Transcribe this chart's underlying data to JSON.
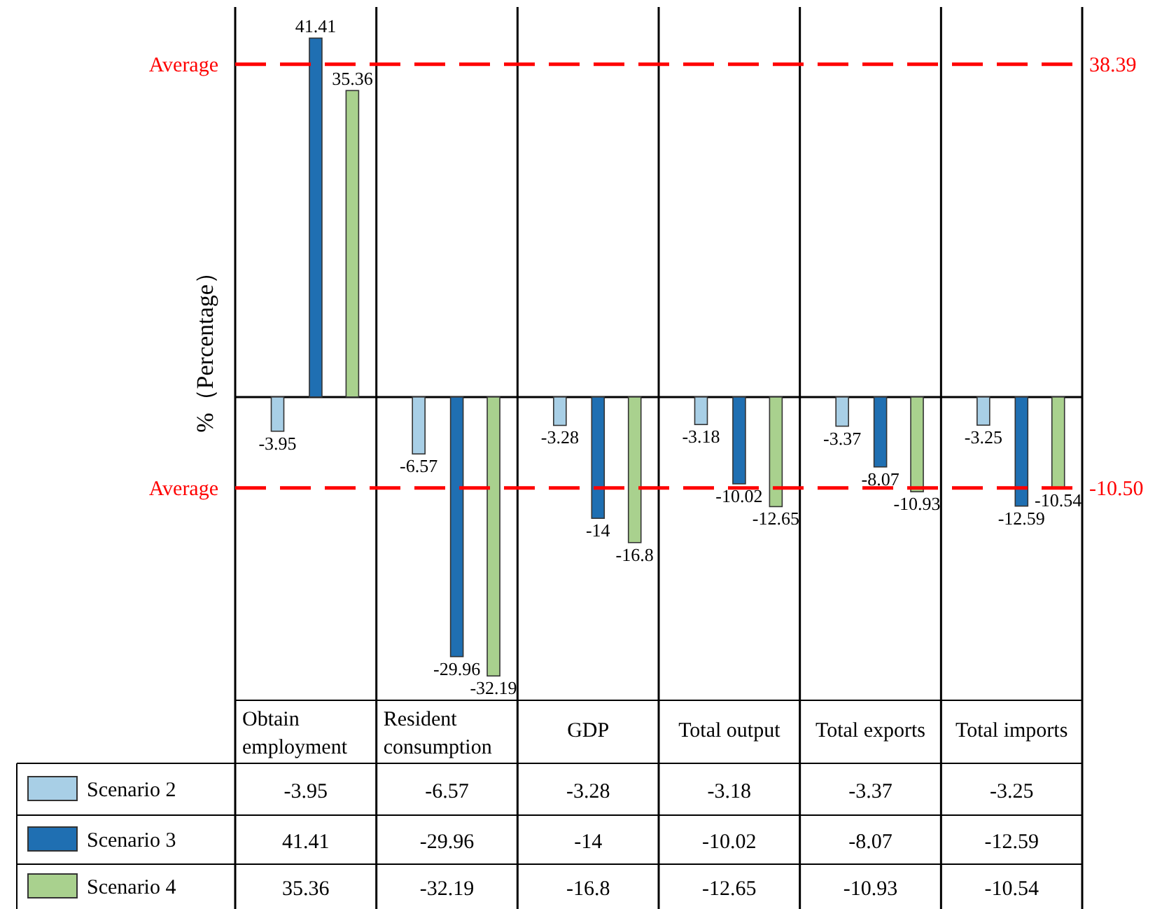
{
  "chart_data": {
    "type": "bar",
    "ylabel": "%（Percentage）",
    "categories": [
      "Obtain employment",
      "Resident consumption",
      "GDP",
      "Total output",
      "Total exports",
      "Total imports"
    ],
    "series": [
      {
        "name": "Scenario 2",
        "color": "#a8cfe6",
        "values": [
          -3.95,
          -6.57,
          -3.28,
          -3.18,
          -3.37,
          -3.25
        ],
        "value_labels": [
          "-3.95",
          "-6.57",
          "-3.28",
          "-3.18",
          "-3.37",
          "-3.25"
        ]
      },
      {
        "name": "Scenario 3",
        "color": "#1f6fb2",
        "values": [
          41.41,
          -29.96,
          -14,
          -10.02,
          -8.07,
          -12.59
        ],
        "value_labels": [
          "41.41",
          "-29.96",
          "-14",
          "-10.02",
          "-8.07",
          "-12.59"
        ]
      },
      {
        "name": "Scenario 4",
        "color": "#a9d18e",
        "values": [
          35.36,
          -32.19,
          -16.8,
          -12.65,
          -10.93,
          -10.54
        ],
        "value_labels": [
          "35.36",
          "-32.19",
          "-16.8",
          "-12.65",
          "-10.93",
          "-10.54"
        ]
      }
    ],
    "annotations": [
      "38.39",
      "-10.50"
    ],
    "ylim": [
      -35,
      45
    ],
    "tick_labels": "x",
    "grid": "x",
    "legend": "bottom left",
    "ref_lines": [
      {
        "axis": "y",
        "value": 38.39,
        "label": "Average",
        "color": "#ff0000",
        "line_style": "dashed"
      },
      {
        "axis": "y",
        "value": -10.5,
        "label": "Average",
        "color": "#ff0000",
        "line_style": "dashed"
      }
    ]
  }
}
